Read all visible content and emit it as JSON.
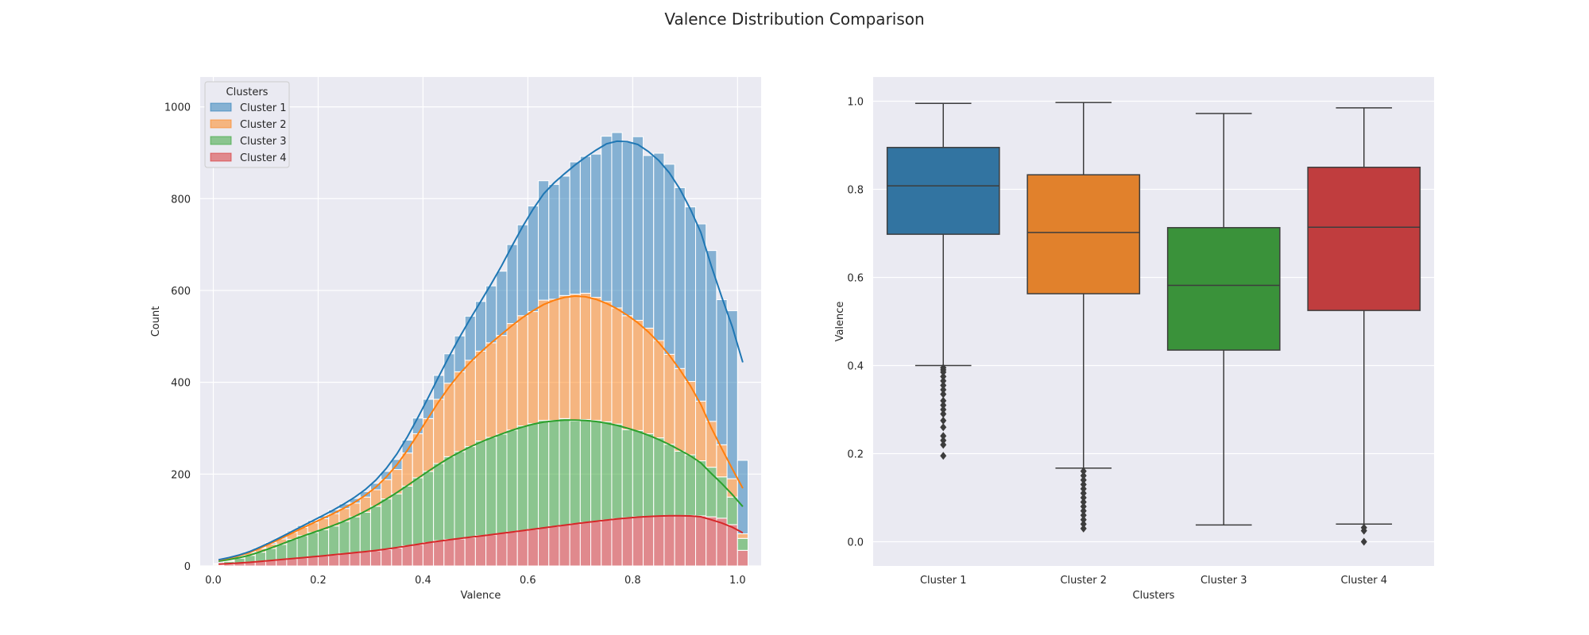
{
  "title": "Valence Distribution Comparison",
  "chart_data": [
    {
      "type": "histogram",
      "stacked": true,
      "xlabel": "Valence",
      "ylabel": "Count",
      "xlim": [
        -0.025,
        1.045
      ],
      "ylim": [
        0,
        1065
      ],
      "xticks": [
        0.0,
        0.2,
        0.4,
        0.6,
        0.8,
        1.0
      ],
      "xtick_labels": [
        "0.0",
        "0.2",
        "0.4",
        "0.6",
        "0.8",
        "1.0"
      ],
      "yticks": [
        0,
        200,
        400,
        600,
        800,
        1000
      ],
      "ytick_labels": [
        "0",
        "200",
        "400",
        "600",
        "800",
        "1000"
      ],
      "grid": true,
      "legend": {
        "title": "Clusters",
        "position": "top-left"
      },
      "bin_start": 0.0,
      "bin_width": 0.02,
      "series": [
        {
          "name": "Cluster 4",
          "color": "#d62728",
          "values": [
            2,
            4,
            6,
            8,
            10,
            12,
            14,
            16,
            18,
            20,
            22,
            24,
            27,
            29,
            31,
            33,
            36,
            39,
            44,
            47,
            51,
            55,
            58,
            59,
            62,
            66,
            68,
            71,
            74,
            77,
            80,
            83,
            86,
            89,
            92,
            95,
            97,
            100,
            103,
            105,
            107,
            108,
            109,
            110,
            110,
            110,
            109,
            107,
            104,
            90,
            34
          ]
        },
        {
          "name": "Cluster 3",
          "color": "#2ca02c",
          "values": [
            2,
            6,
            11,
            15,
            20,
            26,
            33,
            42,
            48,
            53,
            57,
            63,
            70,
            78,
            86,
            97,
            110,
            118,
            130,
            145,
            155,
            168,
            180,
            190,
            198,
            206,
            212,
            216,
            222,
            228,
            230,
            234,
            231,
            232,
            224,
            224,
            220,
            214,
            206,
            192,
            188,
            180,
            170,
            155,
            140,
            132,
            120,
            108,
            90,
            60,
            26
          ]
        },
        {
          "name": "Cluster 2",
          "color": "#ff7f0e",
          "values": [
            1,
            2,
            4,
            6,
            8,
            10,
            12,
            15,
            18,
            21,
            24,
            27,
            28,
            30,
            33,
            36,
            42,
            53,
            72,
            96,
            115,
            140,
            160,
            174,
            188,
            196,
            206,
            215,
            232,
            240,
            244,
            262,
            264,
            268,
            276,
            275,
            268,
            262,
            253,
            248,
            240,
            230,
            212,
            196,
            180,
            160,
            130,
            100,
            70,
            40,
            10
          ]
        },
        {
          "name": "Cluster 1",
          "color": "#1f77b4",
          "values": [
            0,
            1,
            1,
            2,
            2,
            3,
            3,
            3,
            4,
            5,
            6,
            8,
            10,
            10,
            12,
            14,
            18,
            22,
            28,
            34,
            42,
            52,
            64,
            78,
            96,
            108,
            124,
            140,
            172,
            198,
            230,
            260,
            250,
            260,
            288,
            298,
            312,
            360,
            382,
            378,
            400,
            376,
            408,
            414,
            394,
            380,
            386,
            372,
            316,
            366,
            160
          ]
        }
      ]
    },
    {
      "type": "box",
      "xlabel": "Clusters",
      "ylabel": "Valence",
      "ylim": [
        -0.055,
        1.055
      ],
      "yticks": [
        0.0,
        0.2,
        0.4,
        0.6,
        0.8,
        1.0
      ],
      "ytick_labels": [
        "0.0",
        "0.2",
        "0.4",
        "0.6",
        "0.8",
        "1.0"
      ],
      "grid": true,
      "categories": [
        "Cluster 1",
        "Cluster 2",
        "Cluster 3",
        "Cluster 4"
      ],
      "boxes": [
        {
          "name": "Cluster 1",
          "color": "#3274a1",
          "whisker_low": 0.4,
          "q1": 0.698,
          "median": 0.808,
          "q3": 0.895,
          "whisker_high": 0.995,
          "outliers": [
            0.195,
            0.22,
            0.23,
            0.24,
            0.26,
            0.275,
            0.29,
            0.3,
            0.31,
            0.32,
            0.335,
            0.345,
            0.355,
            0.365,
            0.375,
            0.385,
            0.39,
            0.395
          ]
        },
        {
          "name": "Cluster 2",
          "color": "#e1812c",
          "whisker_low": 0.167,
          "q1": 0.563,
          "median": 0.702,
          "q3": 0.833,
          "whisker_high": 0.997,
          "outliers": [
            0.03,
            0.04,
            0.05,
            0.06,
            0.07,
            0.08,
            0.09,
            0.1,
            0.11,
            0.12,
            0.13,
            0.14,
            0.15,
            0.16
          ]
        },
        {
          "name": "Cluster 3",
          "color": "#3a923a",
          "whisker_low": 0.038,
          "q1": 0.435,
          "median": 0.582,
          "q3": 0.713,
          "whisker_high": 0.972,
          "outliers": []
        },
        {
          "name": "Cluster 4",
          "color": "#c03d3e",
          "whisker_low": 0.04,
          "q1": 0.525,
          "median": 0.714,
          "q3": 0.85,
          "whisker_high": 0.985,
          "outliers": [
            0.0,
            0.025,
            0.032
          ]
        }
      ]
    }
  ]
}
